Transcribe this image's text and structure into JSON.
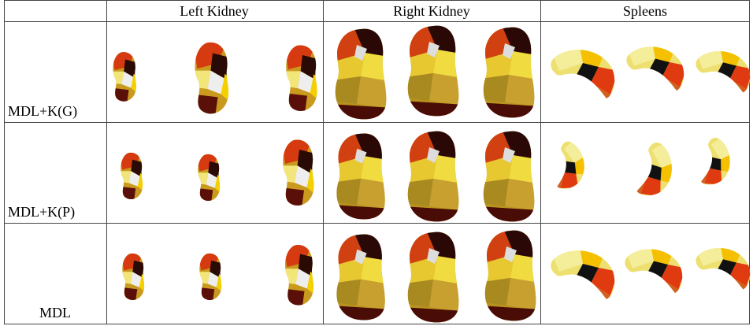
{
  "table": {
    "columns": [
      "Left Kidney",
      "Right Kidney",
      "Spleens"
    ],
    "rows": [
      "MDL+K(G)",
      "MDL+K(P)",
      "MDL"
    ]
  }
}
